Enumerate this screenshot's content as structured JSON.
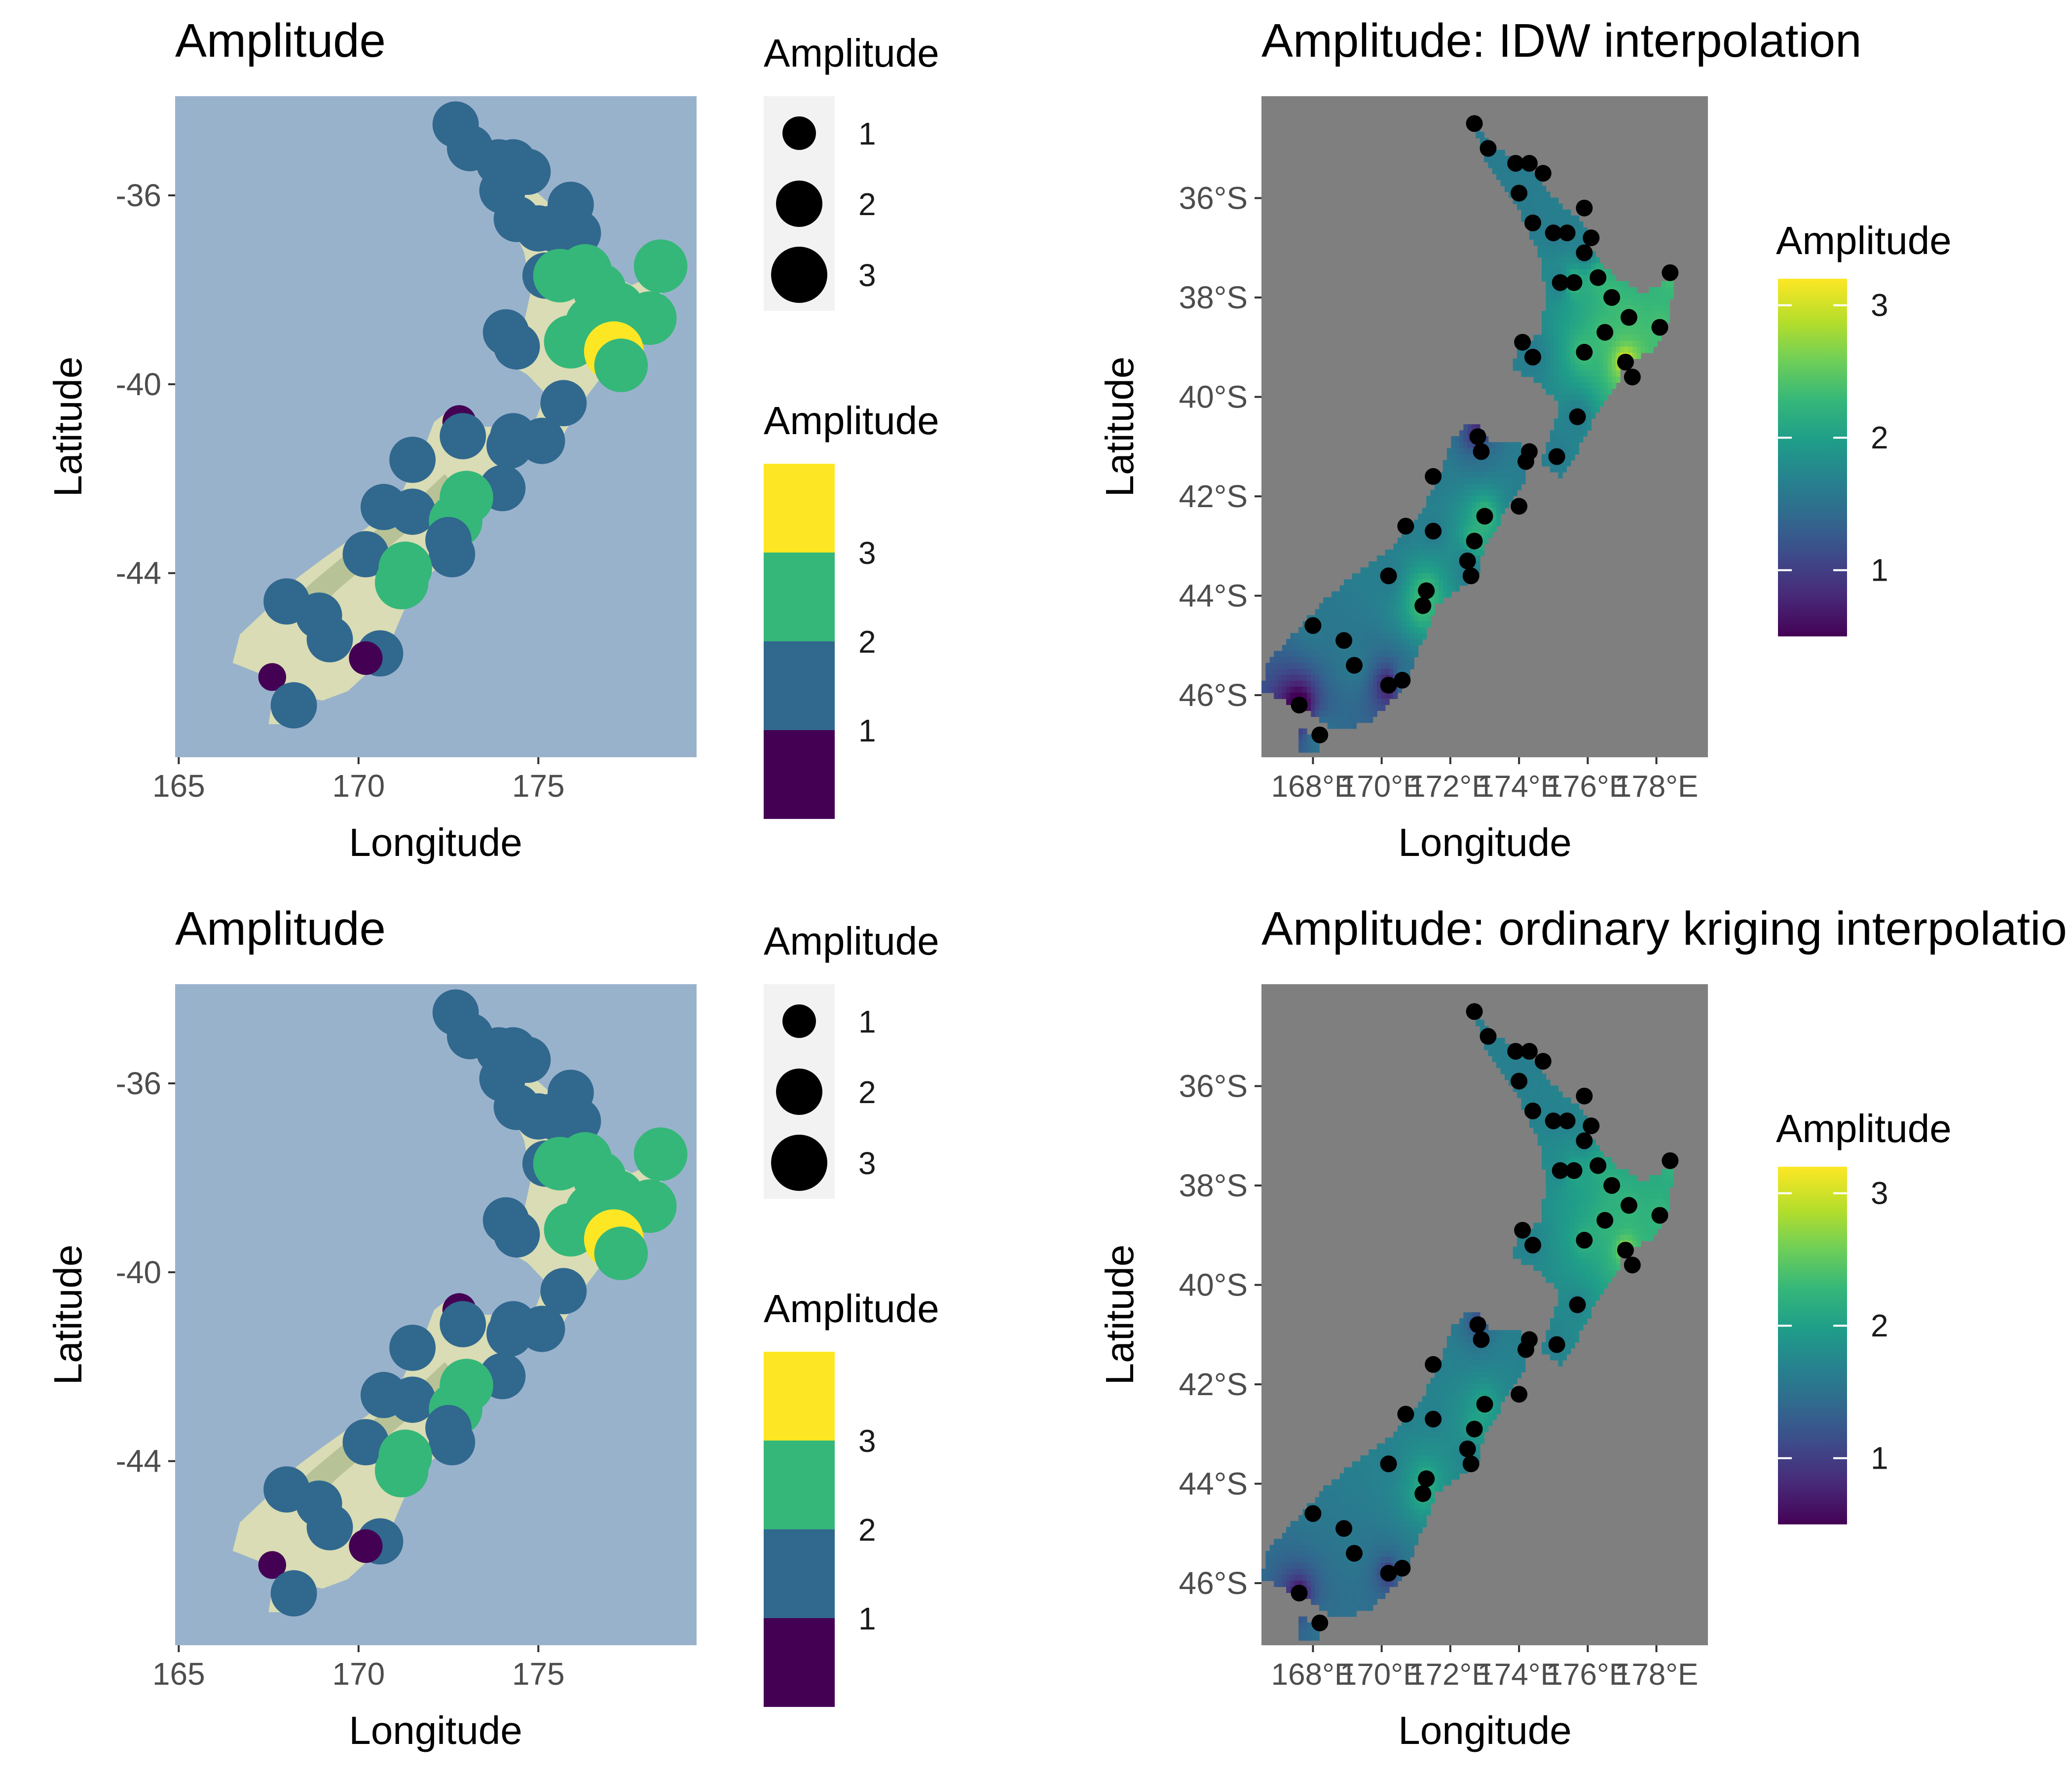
{
  "panels": [
    {
      "id": "p1",
      "kind": "symbol-map",
      "title": "Amplitude",
      "xlabel": "Longitude",
      "ylabel": "Latitude",
      "xticks": [
        {
          "v": 165,
          "label": "165"
        },
        {
          "v": 170,
          "label": "170"
        },
        {
          "v": 175,
          "label": "175"
        }
      ],
      "yticks": [
        {
          "v": -36,
          "label": "-36"
        },
        {
          "v": -40,
          "label": "-40"
        },
        {
          "v": -44,
          "label": "-44"
        }
      ],
      "xlim": [
        164.9,
        179.4
      ],
      "ylim": [
        -47.9,
        -33.9
      ],
      "panel_background": "#99b2cc",
      "land_color": "#d9dcb4",
      "size_legend": {
        "title": "Amplitude",
        "entries": [
          {
            "value": 1,
            "label": "1"
          },
          {
            "value": 2,
            "label": "2"
          },
          {
            "value": 3,
            "label": "3"
          }
        ]
      },
      "color_legend": {
        "title": "Amplitude",
        "labels": [
          {
            "value": 1,
            "label": "1"
          },
          {
            "value": 2,
            "label": "2"
          },
          {
            "value": 3,
            "label": "3"
          }
        ],
        "colors": [
          "#440154",
          "#31688e",
          "#35b779",
          "#fde725"
        ]
      }
    },
    {
      "id": "p2",
      "kind": "interpolation-map",
      "title": "Amplitude: IDW interpolation",
      "xlabel": "Longitude",
      "ylabel": "Latitude",
      "xticks": [
        {
          "v": 168,
          "label": "168°E"
        },
        {
          "v": 170,
          "label": "170°E"
        },
        {
          "v": 172,
          "label": "172°E"
        },
        {
          "v": 174,
          "label": "174°E"
        },
        {
          "v": 176,
          "label": "176°E"
        },
        {
          "v": 178,
          "label": "178°E"
        }
      ],
      "yticks": [
        {
          "v": -36,
          "label": "36°S"
        },
        {
          "v": -38,
          "label": "38°S"
        },
        {
          "v": -40,
          "label": "40°S"
        },
        {
          "v": -42,
          "label": "42°S"
        },
        {
          "v": -44,
          "label": "44°S"
        },
        {
          "v": -46,
          "label": "46°S"
        }
      ],
      "xlim": [
        166.5,
        179.5
      ],
      "ylim": [
        -47.25,
        -33.95
      ],
      "panel_background": "#7f7f7f",
      "colorbar": {
        "title": "Amplitude",
        "range": [
          0.5,
          3.2
        ],
        "ticks": [
          {
            "value": 1,
            "label": "1"
          },
          {
            "value": 2,
            "label": "2"
          },
          {
            "value": 3,
            "label": "3"
          }
        ]
      }
    },
    {
      "id": "p3",
      "kind": "symbol-map",
      "title": "Amplitude",
      "xlabel": "Longitude",
      "ylabel": "Latitude",
      "xticks": [
        {
          "v": 165,
          "label": "165"
        },
        {
          "v": 170,
          "label": "170"
        },
        {
          "v": 175,
          "label": "175"
        }
      ],
      "yticks": [
        {
          "v": -36,
          "label": "-36"
        },
        {
          "v": -40,
          "label": "-40"
        },
        {
          "v": -44,
          "label": "-44"
        }
      ],
      "xlim": [
        164.9,
        179.4
      ],
      "ylim": [
        -47.9,
        -33.9
      ],
      "panel_background": "#99b2cc",
      "land_color": "#d9dcb4",
      "size_legend": {
        "title": "Amplitude",
        "entries": [
          {
            "value": 1,
            "label": "1"
          },
          {
            "value": 2,
            "label": "2"
          },
          {
            "value": 3,
            "label": "3"
          }
        ]
      },
      "color_legend": {
        "title": "Amplitude",
        "labels": [
          {
            "value": 1,
            "label": "1"
          },
          {
            "value": 2,
            "label": "2"
          },
          {
            "value": 3,
            "label": "3"
          }
        ],
        "colors": [
          "#440154",
          "#31688e",
          "#35b779",
          "#fde725"
        ]
      }
    },
    {
      "id": "p4",
      "kind": "interpolation-map",
      "title": "Amplitude: ordinary kriging interpolation",
      "xlabel": "Longitude",
      "ylabel": "Latitude",
      "xticks": [
        {
          "v": 168,
          "label": "168°E"
        },
        {
          "v": 170,
          "label": "170°E"
        },
        {
          "v": 172,
          "label": "172°E"
        },
        {
          "v": 174,
          "label": "174°E"
        },
        {
          "v": 176,
          "label": "176°E"
        },
        {
          "v": 178,
          "label": "178°E"
        }
      ],
      "yticks": [
        {
          "v": -36,
          "label": "36°S"
        },
        {
          "v": -38,
          "label": "38°S"
        },
        {
          "v": -40,
          "label": "40°S"
        },
        {
          "v": -42,
          "label": "42°S"
        },
        {
          "v": -44,
          "label": "44°S"
        },
        {
          "v": -46,
          "label": "46°S"
        }
      ],
      "xlim": [
        166.5,
        179.5
      ],
      "ylim": [
        -47.25,
        -33.95
      ],
      "panel_background": "#7f7f7f",
      "colorbar": {
        "title": "Amplitude",
        "range": [
          0.5,
          3.2
        ],
        "ticks": [
          {
            "value": 1,
            "label": "1"
          },
          {
            "value": 2,
            "label": "2"
          },
          {
            "value": 3,
            "label": "3"
          }
        ]
      }
    }
  ],
  "chart_data": {
    "type": "scatter",
    "colormap": [
      "#440154",
      "#482878",
      "#3e4989",
      "#31688e",
      "#26828e",
      "#1f9e89",
      "#35b779",
      "#6ece58",
      "#b5de2b",
      "#fde725"
    ],
    "stations": [
      {
        "lon": 172.7,
        "lat": -34.5,
        "amp": 1.6
      },
      {
        "lon": 173.1,
        "lat": -35.0,
        "amp": 1.6
      },
      {
        "lon": 173.9,
        "lat": -35.3,
        "amp": 1.6
      },
      {
        "lon": 174.3,
        "lat": -35.3,
        "amp": 1.6
      },
      {
        "lon": 174.7,
        "lat": -35.5,
        "amp": 1.6
      },
      {
        "lon": 174.0,
        "lat": -35.9,
        "amp": 1.6
      },
      {
        "lon": 175.9,
        "lat": -36.2,
        "amp": 1.6
      },
      {
        "lon": 174.4,
        "lat": -36.5,
        "amp": 1.6
      },
      {
        "lon": 175.0,
        "lat": -36.7,
        "amp": 1.6
      },
      {
        "lon": 175.4,
        "lat": -36.7,
        "amp": 1.6
      },
      {
        "lon": 176.1,
        "lat": -36.8,
        "amp": 1.6
      },
      {
        "lon": 175.9,
        "lat": -37.1,
        "amp": 1.6
      },
      {
        "lon": 176.3,
        "lat": -37.6,
        "amp": 2.4
      },
      {
        "lon": 178.4,
        "lat": -37.5,
        "amp": 2.4
      },
      {
        "lon": 175.2,
        "lat": -37.7,
        "amp": 1.6
      },
      {
        "lon": 175.6,
        "lat": -37.7,
        "amp": 2.4
      },
      {
        "lon": 176.7,
        "lat": -38.0,
        "amp": 2.4
      },
      {
        "lon": 177.2,
        "lat": -38.4,
        "amp": 2.4
      },
      {
        "lon": 176.5,
        "lat": -38.7,
        "amp": 2.4
      },
      {
        "lon": 178.1,
        "lat": -38.6,
        "amp": 2.4
      },
      {
        "lon": 174.1,
        "lat": -38.9,
        "amp": 1.6
      },
      {
        "lon": 174.4,
        "lat": -39.2,
        "amp": 1.6
      },
      {
        "lon": 175.9,
        "lat": -39.1,
        "amp": 2.4
      },
      {
        "lon": 177.1,
        "lat": -39.3,
        "amp": 3.2
      },
      {
        "lon": 177.3,
        "lat": -39.6,
        "amp": 2.4
      },
      {
        "lon": 175.7,
        "lat": -40.4,
        "amp": 1.6
      },
      {
        "lon": 172.8,
        "lat": -40.8,
        "amp": 0.6
      },
      {
        "lon": 172.9,
        "lat": -41.1,
        "amp": 1.6
      },
      {
        "lon": 174.3,
        "lat": -41.1,
        "amp": 1.6
      },
      {
        "lon": 174.2,
        "lat": -41.3,
        "amp": 1.6
      },
      {
        "lon": 175.1,
        "lat": -41.2,
        "amp": 1.6
      },
      {
        "lon": 171.5,
        "lat": -41.6,
        "amp": 1.6
      },
      {
        "lon": 174.0,
        "lat": -42.2,
        "amp": 1.6
      },
      {
        "lon": 170.7,
        "lat": -42.6,
        "amp": 1.6
      },
      {
        "lon": 171.5,
        "lat": -42.7,
        "amp": 1.6
      },
      {
        "lon": 173.0,
        "lat": -42.4,
        "amp": 2.4
      },
      {
        "lon": 172.7,
        "lat": -42.9,
        "amp": 2.4
      },
      {
        "lon": 172.5,
        "lat": -43.3,
        "amp": 1.6
      },
      {
        "lon": 172.6,
        "lat": -43.6,
        "amp": 1.6
      },
      {
        "lon": 170.2,
        "lat": -43.6,
        "amp": 1.6
      },
      {
        "lon": 171.3,
        "lat": -43.9,
        "amp": 2.4
      },
      {
        "lon": 171.2,
        "lat": -44.2,
        "amp": 2.4
      },
      {
        "lon": 168.0,
        "lat": -44.6,
        "amp": 1.6
      },
      {
        "lon": 168.9,
        "lat": -44.9,
        "amp": 1.6
      },
      {
        "lon": 169.2,
        "lat": -45.4,
        "amp": 1.6
      },
      {
        "lon": 170.6,
        "lat": -45.7,
        "amp": 1.6
      },
      {
        "lon": 170.2,
        "lat": -45.8,
        "amp": 0.6
      },
      {
        "lon": 167.6,
        "lat": -46.2,
        "amp": 0.3
      },
      {
        "lon": 168.2,
        "lat": -46.8,
        "amp": 1.6
      }
    ]
  }
}
